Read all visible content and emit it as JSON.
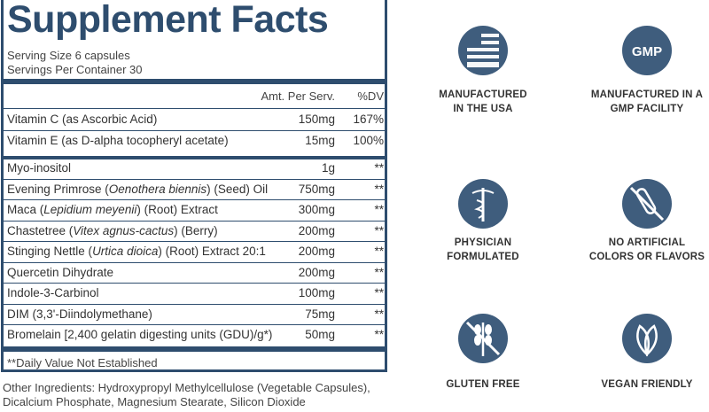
{
  "panel": {
    "title": "Supplement Facts",
    "serving_size": "Serving Size 6 capsules",
    "servings_per_container": "Servings Per Container 30",
    "columns": [
      "Amt. Per Serv.",
      "%DV"
    ],
    "rows": [
      {
        "name": [
          {
            "text": "Vitamin C (as Ascorbic Acid)"
          }
        ],
        "amount": "150mg",
        "dv": "167%"
      },
      {
        "name": [
          {
            "text": "Vitamin E (as D-alpha tocopheryl acetate)"
          }
        ],
        "amount": "15mg",
        "dv": "100%"
      },
      {
        "name": [
          {
            "text": "Myo-inositol"
          }
        ],
        "amount": "1g",
        "dv": "**"
      },
      {
        "name": [
          {
            "text": "Evening Primrose ("
          },
          {
            "text": "Oenothera biennis",
            "italic": true
          },
          {
            "text": ") (Seed) Oil"
          }
        ],
        "amount": "750mg",
        "dv": "**"
      },
      {
        "name": [
          {
            "text": "Maca ("
          },
          {
            "text": "Lepidium meyenii",
            "italic": true
          },
          {
            "text": ") (Root) Extract"
          }
        ],
        "amount": "300mg",
        "dv": "**"
      },
      {
        "name": [
          {
            "text": "Chastetree ("
          },
          {
            "text": "Vitex agnus-cactus",
            "italic": true
          },
          {
            "text": ") (Berry)"
          }
        ],
        "amount": "200mg",
        "dv": "**"
      },
      {
        "name": [
          {
            "text": "Stinging Nettle ("
          },
          {
            "text": "Urtica dioica",
            "italic": true
          },
          {
            "text": ") (Root) Extract 20:1"
          }
        ],
        "amount": "200mg",
        "dv": "**"
      },
      {
        "name": [
          {
            "text": "Quercetin Dihydrate"
          }
        ],
        "amount": "200mg",
        "dv": "**"
      },
      {
        "name": [
          {
            "text": "Indole-3-Carbinol"
          }
        ],
        "amount": "100mg",
        "dv": "**"
      },
      {
        "name": [
          {
            "text": "DIM (3,3'-Diindolymethane)"
          }
        ],
        "amount": "75mg",
        "dv": "**"
      },
      {
        "name": [
          {
            "text": "Bromelain [2,400 gelatin digesting units (GDU)/g*)"
          }
        ],
        "amount": "50mg",
        "dv": "**"
      }
    ],
    "footnote": "**Daily Value Not Established"
  },
  "other_ingredients": [
    "Other Ingredients: Hydroxypropyl Methylcellulose (Vegetable Capsules),",
    "Dicalcium Phosphate, Magnesium Stearate, Silicon Dioxide"
  ],
  "badges": [
    {
      "label": [
        "MANUFACTURED",
        "IN THE USA"
      ]
    },
    {
      "label": [
        "MANUFACTURED IN A",
        "GMP FACILITY"
      ],
      "icon_text": "GMP"
    },
    {
      "label": [
        "PHYSICIAN",
        "FORMULATED"
      ]
    },
    {
      "label": [
        "NO ARTIFICIAL",
        "COLORS OR FLAVORS"
      ]
    },
    {
      "label": [
        "GLUTEN FREE"
      ]
    },
    {
      "label": [
        "VEGAN FRIENDLY"
      ]
    }
  ]
}
